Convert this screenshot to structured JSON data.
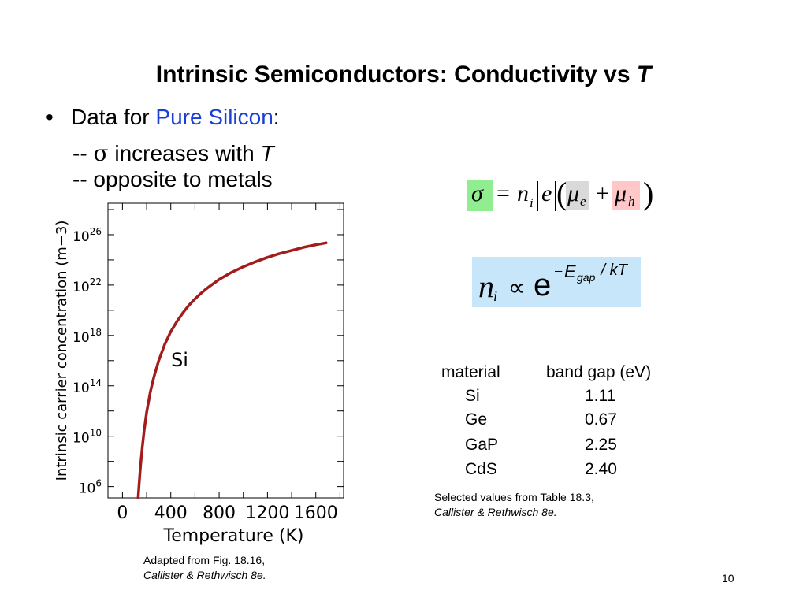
{
  "slide": {
    "title_main": "Intrinsic Semiconductors: Conductivity vs ",
    "title_var": "T",
    "bullet_prefix": "Data for ",
    "bullet_highlight": "Pure Silicon",
    "bullet_colon": ":",
    "sub1_dash": "-- ",
    "sub1_sigma": "σ",
    "sub1_text": " increases with ",
    "sub1_var": "T",
    "sub2": "-- opposite to metals",
    "page_number": "10"
  },
  "formula1": {
    "sigma": "σ",
    "eq": "=",
    "n": "n",
    "i": "i",
    "e": "e",
    "mu": "μ",
    "sub_e": "e",
    "plus": "+",
    "sub_h": "h",
    "colors": {
      "sigma_bg": "#90ee90",
      "mue_bg": "#d9d9d9",
      "muh_bg": "#ffc7c7"
    }
  },
  "formula2": {
    "n": "n",
    "i": "i",
    "prop": "∝",
    "e": "e",
    "exp_minus": "−",
    "exp_E": "E",
    "exp_gap": "gap",
    "exp_rest": " / kT",
    "bg": "#c8e6fa"
  },
  "table": {
    "headers": [
      "material",
      "band gap (eV)"
    ],
    "rows": [
      [
        "Si",
        "1.11"
      ],
      [
        "Ge",
        "0.67"
      ],
      [
        "GaP",
        "2.25"
      ],
      [
        "CdS",
        "2.40"
      ]
    ]
  },
  "table_caption": {
    "line1": "Selected values from Table 18.3,",
    "line2": "Callister & Rethwisch 8e."
  },
  "figure_caption": {
    "line1": "Adapted from Fig. 18.16,",
    "line2": "Callister & Rethwisch 8e."
  },
  "chart_data": {
    "type": "line",
    "xlabel": "Temperature (K)",
    "ylabel": "Intrinsic carrier concentration (m−3)",
    "x_ticks": [
      "0",
      "400",
      "800",
      "1200",
      "1600"
    ],
    "x_tick_values": [
      0,
      400,
      800,
      1200,
      1600
    ],
    "y_ticks_base": [
      "10",
      "10",
      "10",
      "10",
      "10",
      "10"
    ],
    "y_ticks_exp": [
      "6",
      "10",
      "14",
      "18",
      "22",
      "26"
    ],
    "y_tick_log_values": [
      6,
      10,
      14,
      18,
      22,
      26
    ],
    "xlim": [
      -120,
      1830
    ],
    "ylim_log10": [
      5.1,
      28.5
    ],
    "series": [
      {
        "name": "Si",
        "color": "#a31c1c",
        "x": [
          130,
          140,
          150,
          165,
          180,
          200,
          230,
          260,
          300,
          350,
          400,
          450,
          500,
          550,
          600,
          650,
          700,
          800,
          900,
          1000,
          1100,
          1200,
          1300,
          1400,
          1500,
          1600,
          1685
        ],
        "log10_y": [
          5.1,
          6.5,
          7.7,
          9.2,
          10.5,
          11.9,
          13.5,
          14.7,
          16.0,
          17.3,
          18.3,
          19.1,
          19.8,
          20.4,
          20.9,
          21.35,
          21.75,
          22.45,
          23.0,
          23.45,
          23.85,
          24.2,
          24.5,
          24.75,
          25.0,
          25.2,
          25.35
        ]
      }
    ]
  }
}
